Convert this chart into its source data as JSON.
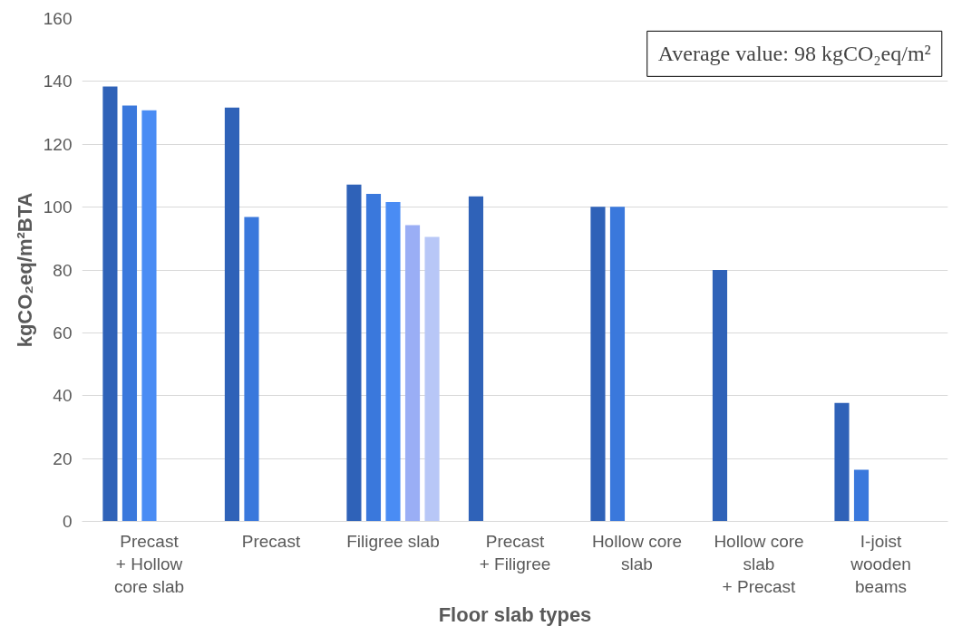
{
  "chart_data": {
    "type": "bar",
    "xlabel": "Floor slab types",
    "ylabel": "kgCO₂eq/m²BTA",
    "categories": [
      "Precast\n+ Hollow\ncore slab",
      "Precast",
      "Filigree slab",
      "Precast\n+ Filigree",
      "Hollow core\nslab",
      "Hollow core\nslab\n+ Precast",
      "I-joist\nwooden\nbeams"
    ],
    "series": [
      {
        "color": "#2f62b8",
        "values": [
          138.4,
          131.7,
          107.2,
          103.4,
          100.1,
          80,
          37.7
        ]
      },
      {
        "color": "#3a78dc",
        "values": [
          132.3,
          96.9,
          104.2,
          null,
          100.1,
          null,
          16.4
        ]
      },
      {
        "color": "#4a8cf4",
        "values": [
          130.8,
          null,
          101.6,
          null,
          null,
          null,
          null
        ]
      },
      {
        "color": "#9aaef5",
        "values": [
          null,
          null,
          94.3,
          null,
          null,
          null,
          null
        ]
      },
      {
        "color": "#b8c7f7",
        "values": [
          null,
          null,
          90.5,
          null,
          null,
          null,
          null
        ]
      }
    ],
    "ylim": [
      0,
      160
    ],
    "yticks": [
      0,
      20,
      40,
      60,
      80,
      100,
      120,
      140,
      160
    ],
    "grid": "y",
    "annotations": [
      "Average value: 98 kgCO₂eq/m²"
    ]
  }
}
